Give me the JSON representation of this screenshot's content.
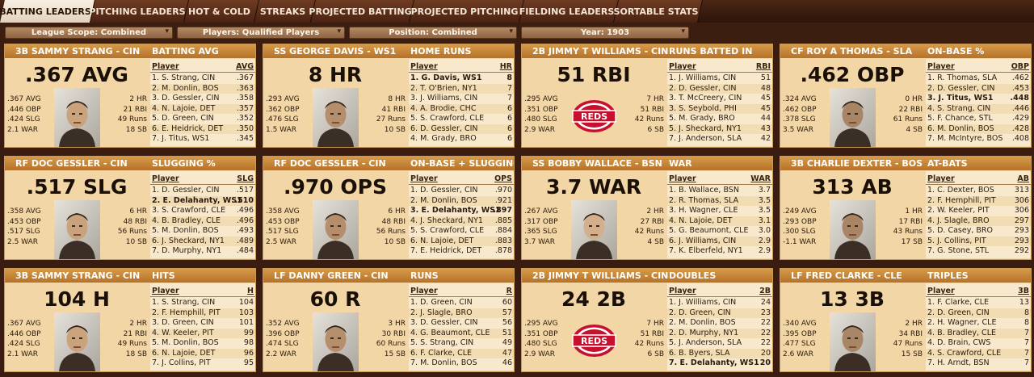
{
  "tabs": [
    "BATTING LEADERS",
    "PITCHING LEADERS",
    "HOT & COLD",
    "STREAKS",
    "PROJECTED BATTING",
    "PROJECTED PITCHING",
    "FIELDING LEADERS",
    "SORTABLE STATS"
  ],
  "filters": {
    "league_scope": "League Scope: Combined",
    "players": "Players: Qualified Players",
    "position": "Position: Combined",
    "year": "Year: 1903",
    "arrow": "▾"
  },
  "player_col": "Player",
  "cards": [
    {
      "player": "3B SAMMY STRANG - CIN",
      "category": "BATTING AVG",
      "big": ".367 AVG",
      "col": "AVG",
      "left": [
        ".367 AVG",
        ".446 OBP",
        ".424 SLG",
        "2.1 WAR"
      ],
      "right": [
        "2 HR",
        "21 RBI",
        "49 Runs",
        "18 SB"
      ],
      "rows": [
        [
          "1. S. Strang, CIN",
          ".367"
        ],
        [
          "2. M. Donlin, BOS",
          ".363"
        ],
        [
          "3. D. Gessler, CIN",
          ".358"
        ],
        [
          "4. N. Lajoie, DET",
          ".357"
        ],
        [
          "5. D. Green, CIN",
          ".352"
        ],
        [
          "6. E. Heidrick, DET",
          ".350"
        ],
        [
          "7. J. Titus, WS1",
          ".345"
        ]
      ]
    },
    {
      "player": "SS GEORGE DAVIS - WS1",
      "category": "HOME RUNS",
      "big": "8 HR",
      "col": "HR",
      "left": [
        ".293 AVG",
        ".362 OBP",
        ".476 SLG",
        "1.5 WAR"
      ],
      "right": [
        "8 HR",
        "41 RBI",
        "27 Runs",
        "10 SB"
      ],
      "rows": [
        [
          "1. G. Davis, WS1",
          "8"
        ],
        [
          "2. T. O'Brien, NY1",
          "7"
        ],
        [
          "3. J. Williams, CIN",
          "7"
        ],
        [
          "4. A. Brodie, CHC",
          "6"
        ],
        [
          "5. S. Crawford, CLE",
          "6"
        ],
        [
          "6. D. Gessler, CIN",
          "6"
        ],
        [
          "4. M. Grady, BRO",
          "6"
        ]
      ]
    },
    {
      "player": "2B JIMMY T WILLIAMS - CIN",
      "category": "RUNS BATTED IN",
      "big": "51 RBI",
      "col": "RBI",
      "left": [
        ".295 AVG",
        ".351 OBP",
        ".480 SLG",
        "2.9 WAR"
      ],
      "right": [
        "7 HR",
        "51 RBI",
        "42 Runs",
        "6 SB"
      ],
      "rows": [
        [
          "1. J. Williams, CIN",
          "51"
        ],
        [
          "2. D. Gessler, CIN",
          "48"
        ],
        [
          "3. T. McCreery, CIN",
          "45"
        ],
        [
          "3. S. Seybold, PHI",
          "45"
        ],
        [
          "5. M. Grady, BRO",
          "44"
        ],
        [
          "5. J. Sheckard, NY1",
          "43"
        ],
        [
          "7. J. Anderson, SLA",
          "42"
        ]
      ]
    },
    {
      "player": "CF ROY A THOMAS - SLA",
      "category": "ON-BASE %",
      "big": ".462 OBP",
      "col": "OBP",
      "left": [
        ".324 AVG",
        ".462 OBP",
        ".378 SLG",
        "3.5 WAR"
      ],
      "right": [
        "0 HR",
        "22 RBI",
        "61 Runs",
        "4 SB"
      ],
      "rows": [
        [
          "1. R. Thomas, SLA",
          ".462"
        ],
        [
          "2. D. Gessler, CIN",
          ".453"
        ],
        [
          "3. J. Titus, WS1",
          ".448"
        ],
        [
          "4. S. Strang, CIN",
          ".446"
        ],
        [
          "5. F. Chance, STL",
          ".429"
        ],
        [
          "6. M. Donlin, BOS",
          ".428"
        ],
        [
          "7. M. McIntyre, BOS",
          ".408"
        ]
      ]
    },
    {
      "player": "RF DOC GESSLER - CIN",
      "category": "SLUGGING %",
      "big": ".517 SLG",
      "col": "SLG",
      "left": [
        ".358 AVG",
        ".453 OBP",
        ".517 SLG",
        "2.5 WAR"
      ],
      "right": [
        "6 HR",
        "48 RBI",
        "56 Runs",
        "10 SB"
      ],
      "rows": [
        [
          "1. D. Gessler, CIN",
          ".517"
        ],
        [
          "2. E. Delahanty, WS1",
          ".510"
        ],
        [
          "3. S. Crawford, CLE",
          ".496"
        ],
        [
          "4. B. Bradley, CLE",
          ".496"
        ],
        [
          "5. M. Donlin, BOS",
          ".493"
        ],
        [
          "6. J. Sheckard, NY1",
          ".489"
        ],
        [
          "7. D. Murphy, NY1",
          ".484"
        ]
      ]
    },
    {
      "player": "RF DOC GESSLER - CIN",
      "category": "ON-BASE + SLUGGING",
      "big": ".970 OPS",
      "col": "OPS",
      "left": [
        ".358 AVG",
        ".453 OBP",
        ".517 SLG",
        "2.5 WAR"
      ],
      "right": [
        "6 HR",
        "48 RBI",
        "56 Runs",
        "10 SB"
      ],
      "rows": [
        [
          "1. D. Gessler, CIN",
          ".970"
        ],
        [
          "2. M. Donlin, BOS",
          ".921"
        ],
        [
          "3. E. Delahanty, WS1",
          ".897"
        ],
        [
          "4. J. Sheckard, NY1",
          ".885"
        ],
        [
          "5. S. Crawford, CLE",
          ".884"
        ],
        [
          "6. N. Lajoie, DET",
          ".883"
        ],
        [
          "7. E. Heidrick, DET",
          ".878"
        ]
      ]
    },
    {
      "player": "SS BOBBY WALLACE - BSN",
      "category": "WAR",
      "big": "3.7 WAR",
      "col": "WAR",
      "left": [
        ".267 AVG",
        ".317 OBP",
        ".365 SLG",
        "3.7 WAR"
      ],
      "right": [
        "2 HR",
        "27 RBI",
        "42 Runs",
        "4 SB"
      ],
      "rows": [
        [
          "1. B. Wallace, BSN",
          "3.7"
        ],
        [
          "2. R. Thomas, SLA",
          "3.5"
        ],
        [
          "3. H. Wagner, CLE",
          "3.5"
        ],
        [
          "4. N. Lajoie, DET",
          "3.1"
        ],
        [
          "5. G. Beaumont, CLE",
          "3.0"
        ],
        [
          "6. J. Williams, CIN",
          "2.9"
        ],
        [
          "7. K. Elberfeld, NY1",
          "2.9"
        ]
      ]
    },
    {
      "player": "3B CHARLIE DEXTER - BOS",
      "category": "AT-BATS",
      "big": "313 AB",
      "col": "AB",
      "left": [
        ".249 AVG",
        ".293 OBP",
        ".300 SLG",
        "-1.1 WAR"
      ],
      "right": [
        "1 HR",
        "17 RBI",
        "43 Runs",
        "17 SB"
      ],
      "rows": [
        [
          "1. C. Dexter, BOS",
          "313"
        ],
        [
          "2. F. Hemphill, PIT",
          "306"
        ],
        [
          "2. W. Keeler, PIT",
          "306"
        ],
        [
          "4. J. Slagle, BRO",
          "297"
        ],
        [
          "5. D. Casey, BRO",
          "293"
        ],
        [
          "5. J. Collins, PIT",
          "293"
        ],
        [
          "7. G. Stone, STL",
          "292"
        ]
      ]
    },
    {
      "player": "3B SAMMY STRANG - CIN",
      "category": "HITS",
      "big": "104 H",
      "col": "H",
      "left": [
        ".367 AVG",
        ".446 OBP",
        ".424 SLG",
        "2.1 WAR"
      ],
      "right": [
        "2 HR",
        "21 RBI",
        "49 Runs",
        "18 SB"
      ],
      "rows": [
        [
          "1. S. Strang, CIN",
          "104"
        ],
        [
          "2. F. Hemphill, PIT",
          "103"
        ],
        [
          "3. D. Green, CIN",
          "101"
        ],
        [
          "4. W. Keeler, PIT",
          "99"
        ],
        [
          "5. M. Donlin, BOS",
          "98"
        ],
        [
          "6. N. Lajoie, DET",
          "96"
        ],
        [
          "7. J. Collins, PIT",
          "95"
        ]
      ]
    },
    {
      "player": "LF DANNY GREEN - CIN",
      "category": "RUNS",
      "big": "60 R",
      "col": "R",
      "left": [
        ".352 AVG",
        ".396 OBP",
        ".474 SLG",
        "2.2 WAR"
      ],
      "right": [
        "3 HR",
        "30 RBI",
        "60 Runs",
        "15 SB"
      ],
      "rows": [
        [
          "1. D. Green, CIN",
          "60"
        ],
        [
          "2. J. Slagle, BRO",
          "57"
        ],
        [
          "3. D. Gessler, CIN",
          "56"
        ],
        [
          "4. G. Beaumont, CLE",
          "51"
        ],
        [
          "5. S. Strang, CIN",
          "49"
        ],
        [
          "6. F. Clarke, CLE",
          "47"
        ],
        [
          "7. M. Donlin, BOS",
          "46"
        ]
      ]
    },
    {
      "player": "2B JIMMY T WILLIAMS - CIN",
      "category": "DOUBLES",
      "big": "24 2B",
      "col": "2B",
      "left": [
        ".295 AVG",
        ".351 OBP",
        ".480 SLG",
        "2.9 WAR"
      ],
      "right": [
        "7 HR",
        "51 RBI",
        "42 Runs",
        "6 SB"
      ],
      "rows": [
        [
          "1. J. Williams, CIN",
          "24"
        ],
        [
          "2. D. Green, CIN",
          "23"
        ],
        [
          "2. M. Donlin, BOS",
          "22"
        ],
        [
          "2. D. Murphy, NY1",
          "22"
        ],
        [
          "5. J. Anderson, SLA",
          "22"
        ],
        [
          "6. B. Byers, SLA",
          "20"
        ],
        [
          "7. E. Delahanty, WS1",
          "20"
        ]
      ]
    },
    {
      "player": "LF FRED CLARKE - CLE",
      "category": "TRIPLES",
      "big": "13 3B",
      "col": "3B",
      "left": [
        ".340 AVG",
        ".395 OBP",
        ".477 SLG",
        "2.6 WAR"
      ],
      "right": [
        "2 HR",
        "34 RBI",
        "47 Runs",
        "15 SB"
      ],
      "rows": [
        [
          "1. F. Clarke, CLE",
          "13"
        ],
        [
          "2. D. Green, CIN",
          "8"
        ],
        [
          "2. H. Wagner, CLE",
          "8"
        ],
        [
          "4. B. Bradley, CLE",
          "7"
        ],
        [
          "4. D. Brain, CWS",
          "7"
        ],
        [
          "4. S. Crawford, CLE",
          "7"
        ],
        [
          "7. H. Arndt, BSN",
          "7"
        ]
      ]
    }
  ],
  "highlights": [
    null,
    0,
    null,
    2,
    1,
    2,
    null,
    null,
    null,
    null,
    6,
    null
  ],
  "photos": [
    "portrait",
    "portrait",
    "reds-logo",
    "portrait",
    "portrait",
    "portrait",
    "portrait",
    "portrait",
    "portrait",
    "portrait",
    "reds-logo",
    "portrait"
  ],
  "logo_text": "REDS"
}
